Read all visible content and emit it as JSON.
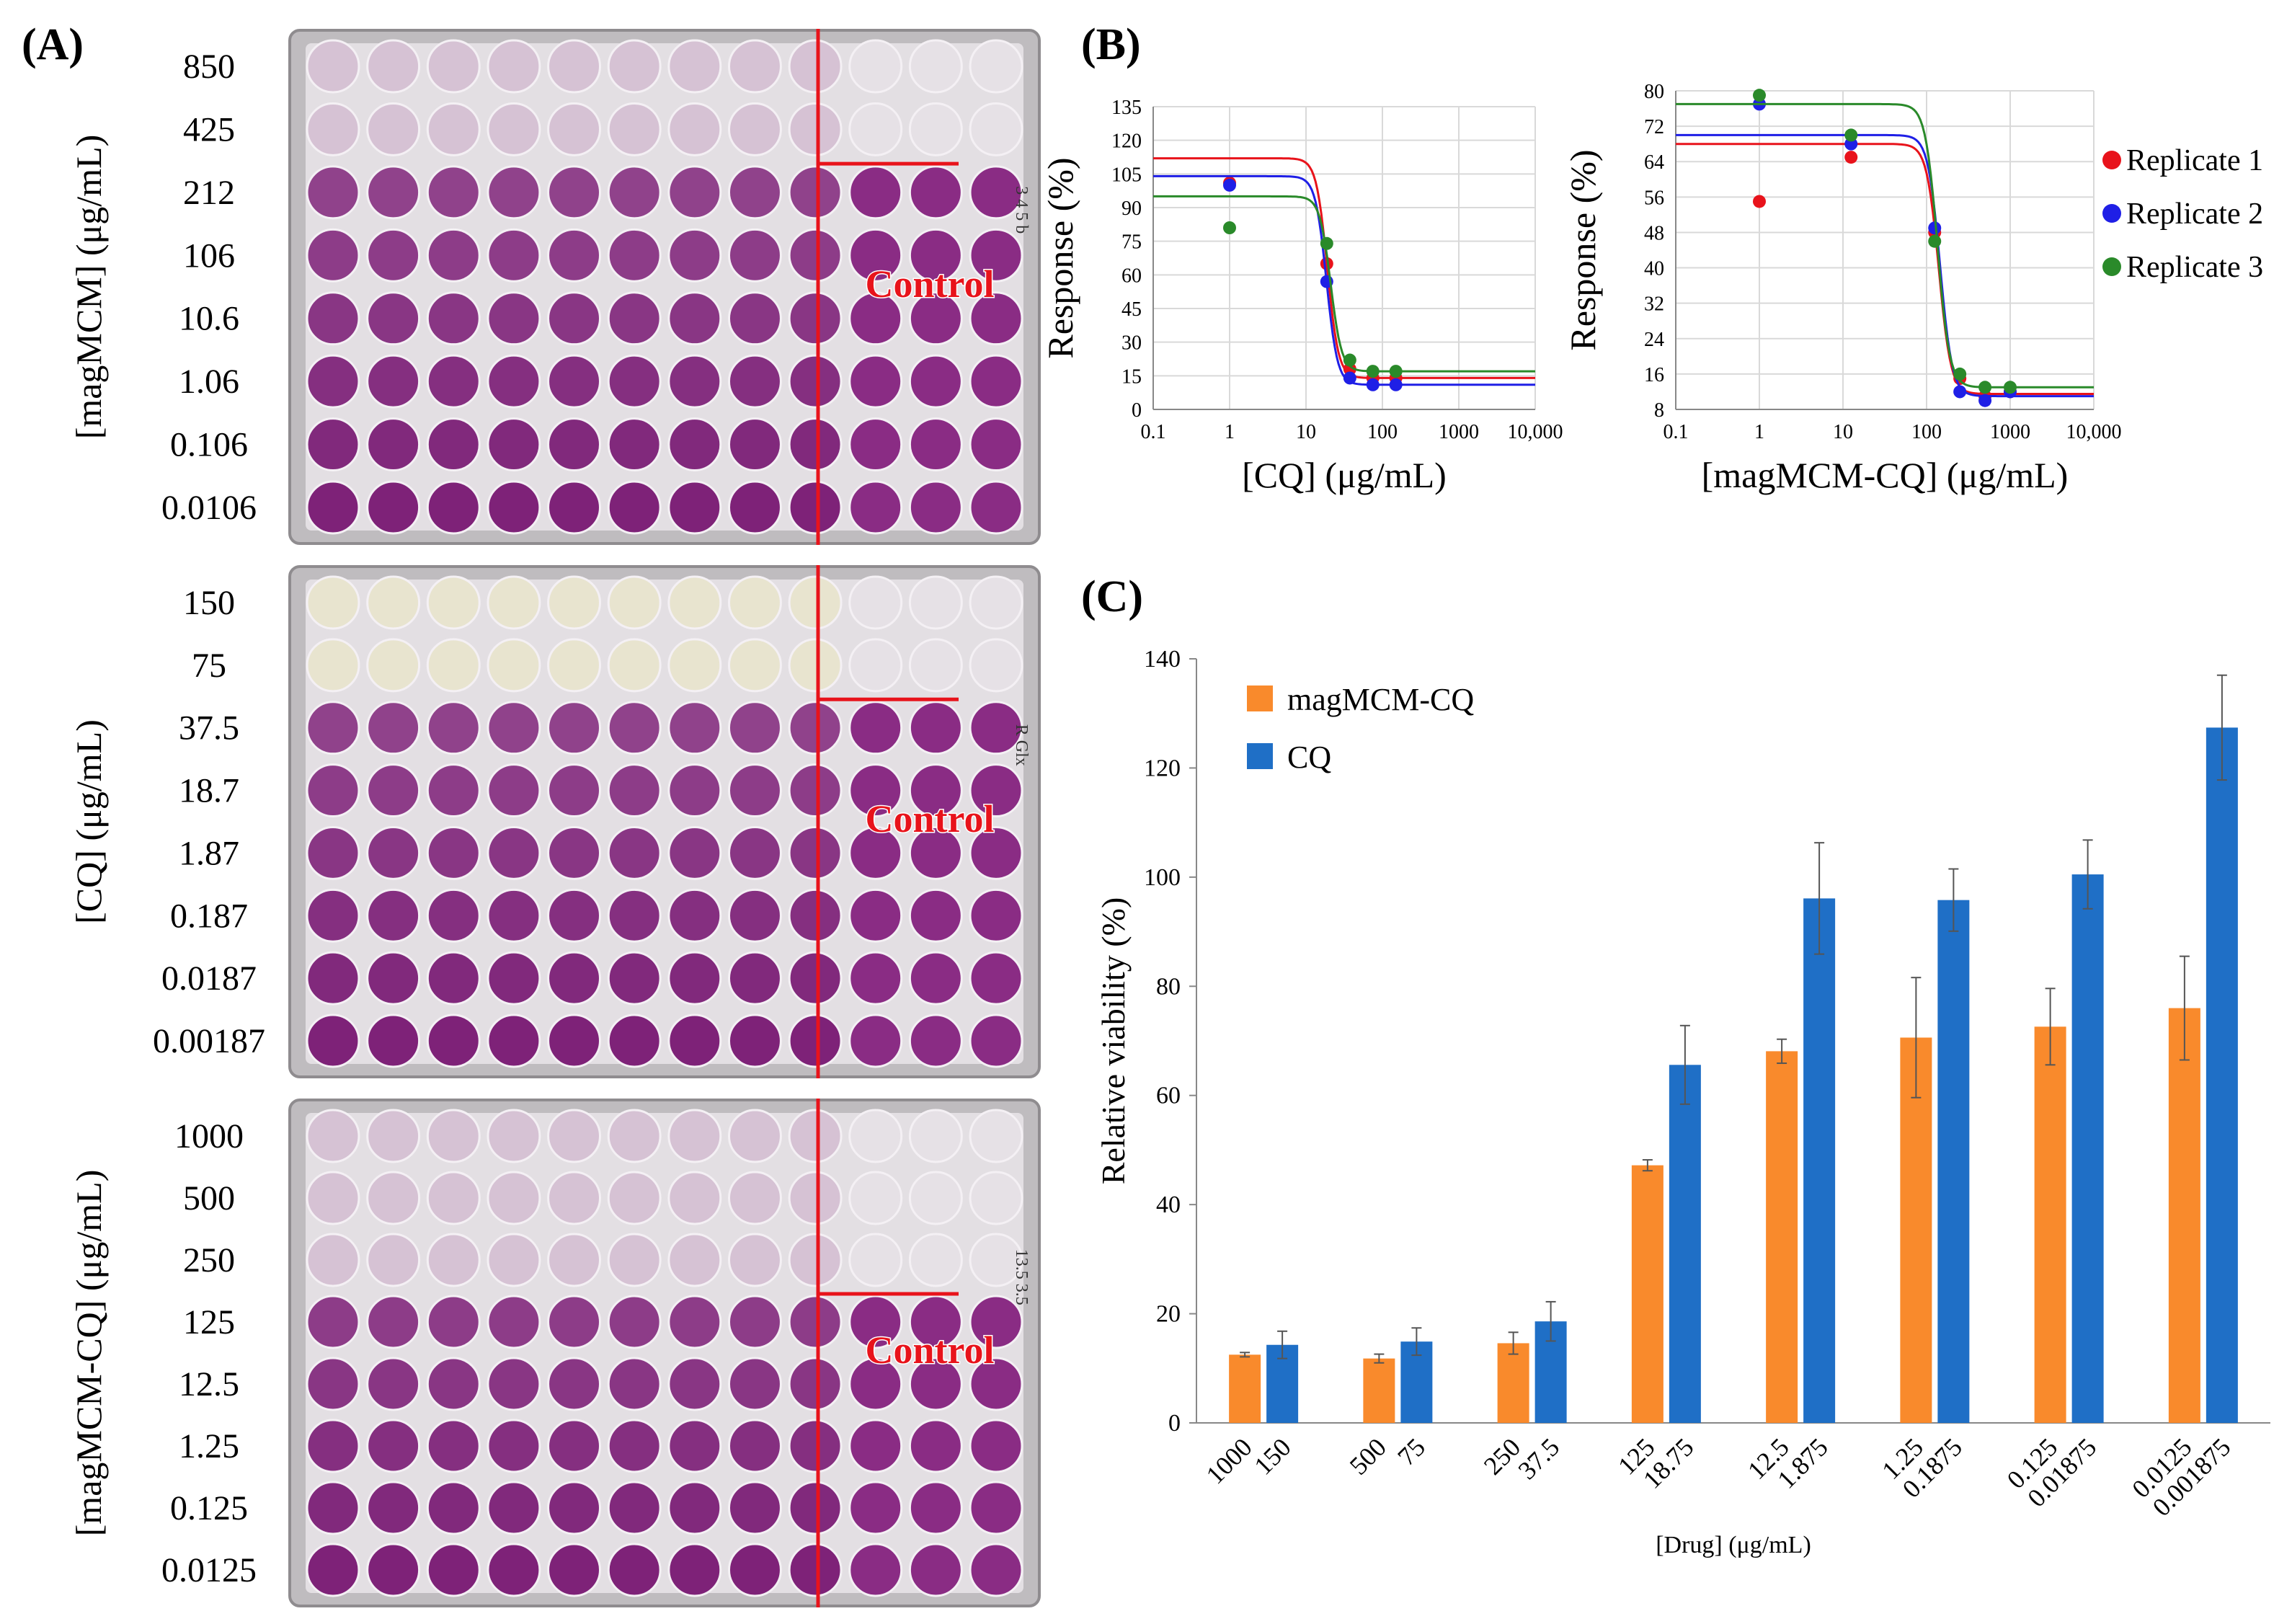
{
  "panel_labels": {
    "A": "(A)",
    "B": "(B)",
    "C": "(C)"
  },
  "colors": {
    "red": "#e8131b",
    "blue": "#1f1fe6",
    "green": "#2a8a2a",
    "orange": "#f98a2c",
    "bar_blue": "#1f6fc6",
    "well_purple": "#7a1c74",
    "well_light": "#d9cfd9"
  },
  "plates": [
    {
      "axis_label": "[magMCM] (μg/mL)",
      "concentrations": [
        "850",
        "425",
        "212",
        "106",
        "10.6",
        "1.06",
        "0.106",
        "0.0106"
      ],
      "control_label": "Control",
      "rows_light": 2,
      "handwriting": "3 4 5 b"
    },
    {
      "axis_label": "[CQ] (μg/mL)",
      "concentrations": [
        "150",
        "75",
        "37.5",
        "18.7",
        "1.87",
        "0.187",
        "0.0187",
        "0.00187"
      ],
      "control_label": "Control",
      "rows_light": 2,
      "handwriting": "R Glx"
    },
    {
      "axis_label": "[magMCM-CQ] (μg/mL)",
      "concentrations": [
        "1000",
        "500",
        "250",
        "125",
        "12.5",
        "1.25",
        "0.125",
        "0.0125"
      ],
      "control_label": "Control",
      "rows_light": 3,
      "handwriting": "13.5 3.5"
    }
  ],
  "chart_data": [
    {
      "type": "scatter",
      "title": "",
      "xlabel": "[CQ] (μg/mL)",
      "ylabel": "Response (%)",
      "xscale": "log",
      "xlim": [
        0.1,
        10000
      ],
      "ylim": [
        0,
        135
      ],
      "xticks": [
        "0.1",
        "1",
        "10",
        "100",
        "1000",
        "10,000"
      ],
      "xtick_values": [
        0.1,
        1,
        10,
        100,
        1000,
        10000
      ],
      "yticks": [
        0,
        15,
        30,
        45,
        60,
        75,
        90,
        105,
        120,
        135
      ],
      "grid": true,
      "series": [
        {
          "name": "Replicate 1",
          "color": "#e8131b",
          "points": [
            [
              1,
              101
            ],
            [
              18.7,
              65
            ],
            [
              37.5,
              18
            ],
            [
              75,
              14
            ],
            [
              150,
              14
            ]
          ],
          "fit": {
            "top": 112,
            "bottom": 14,
            "ec50": 19,
            "hill": 6
          }
        },
        {
          "name": "Replicate 2",
          "color": "#1f1fe6",
          "points": [
            [
              1,
              100
            ],
            [
              18.7,
              57
            ],
            [
              37.5,
              14
            ],
            [
              75,
              11
            ],
            [
              150,
              11
            ]
          ],
          "fit": {
            "top": 104,
            "bottom": 11,
            "ec50": 18.5,
            "hill": 6
          }
        },
        {
          "name": "Replicate 3",
          "color": "#2a8a2a",
          "points": [
            [
              1,
              81
            ],
            [
              18.7,
              74
            ],
            [
              37.5,
              22
            ],
            [
              75,
              17
            ],
            [
              150,
              17
            ]
          ],
          "fit": {
            "top": 95,
            "bottom": 17,
            "ec50": 21,
            "hill": 6
          }
        }
      ]
    },
    {
      "type": "scatter",
      "title": "",
      "xlabel": "[magMCM-CQ] (μg/mL)",
      "ylabel": "Response (%)",
      "xscale": "log",
      "xlim": [
        0.1,
        10000
      ],
      "ylim": [
        8,
        80
      ],
      "xticks": [
        "0.1",
        "1",
        "10",
        "100",
        "1000",
        "10,000"
      ],
      "xtick_values": [
        0.1,
        1,
        10,
        100,
        1000,
        10000
      ],
      "yticks": [
        8,
        16,
        24,
        32,
        40,
        48,
        56,
        64,
        72,
        80
      ],
      "grid": true,
      "legend": [
        "Replicate 1",
        "Replicate 2",
        "Replicate 3"
      ],
      "legend_position": "right",
      "series": [
        {
          "name": "Replicate 1",
          "color": "#e8131b",
          "points": [
            [
              1,
              55
            ],
            [
              12.5,
              65
            ],
            [
              125,
              48
            ],
            [
              250,
              15
            ],
            [
              500,
              11
            ],
            [
              1000,
              12
            ]
          ],
          "fit": {
            "top": 68,
            "bottom": 11.5,
            "ec50": 140,
            "hill": 6
          }
        },
        {
          "name": "Replicate 2",
          "color": "#1f1fe6",
          "points": [
            [
              1,
              77
            ],
            [
              12.5,
              68
            ],
            [
              125,
              49
            ],
            [
              250,
              12
            ],
            [
              500,
              10
            ],
            [
              1000,
              12
            ]
          ],
          "fit": {
            "top": 70,
            "bottom": 11,
            "ec50": 145,
            "hill": 6
          }
        },
        {
          "name": "Replicate 3",
          "color": "#2a8a2a",
          "points": [
            [
              1,
              79
            ],
            [
              12.5,
              70
            ],
            [
              125,
              46
            ],
            [
              250,
              16
            ],
            [
              500,
              13
            ],
            [
              1000,
              13
            ]
          ],
          "fit": {
            "top": 77,
            "bottom": 13,
            "ec50": 135,
            "hill": 6
          }
        }
      ]
    },
    {
      "type": "bar",
      "title": "",
      "xlabel": "[Drug] (μg/mL)",
      "ylabel": "Relative viability (%)",
      "ylim": [
        0,
        140
      ],
      "yticks": [
        0,
        20,
        40,
        60,
        80,
        100,
        120,
        140
      ],
      "legend_position": "top-left",
      "categories": [
        [
          "1000",
          "150"
        ],
        [
          "500",
          "75"
        ],
        [
          "250",
          "37.5"
        ],
        [
          "125",
          "18.75"
        ],
        [
          "12.5",
          "1.875"
        ],
        [
          "1.25",
          "0.1875"
        ],
        [
          "0.125",
          "0.01875"
        ],
        [
          "0.0125",
          "0.001875"
        ]
      ],
      "series": [
        {
          "name": "magMCM-CQ",
          "color": "#f98a2c",
          "values": [
            12.5,
            11.8,
            14.6,
            47.2,
            68.1,
            70.6,
            72.6,
            76.0
          ],
          "errors": [
            0.4,
            0.8,
            2.0,
            1.0,
            2.2,
            11.0,
            7.0,
            9.5
          ]
        },
        {
          "name": "CQ",
          "color": "#1f6fc6",
          "values": [
            14.3,
            14.9,
            18.6,
            65.6,
            96.1,
            95.8,
            100.5,
            127.4
          ],
          "errors": [
            2.5,
            2.5,
            3.6,
            7.2,
            10.2,
            5.7,
            6.3,
            9.6
          ]
        }
      ]
    }
  ]
}
